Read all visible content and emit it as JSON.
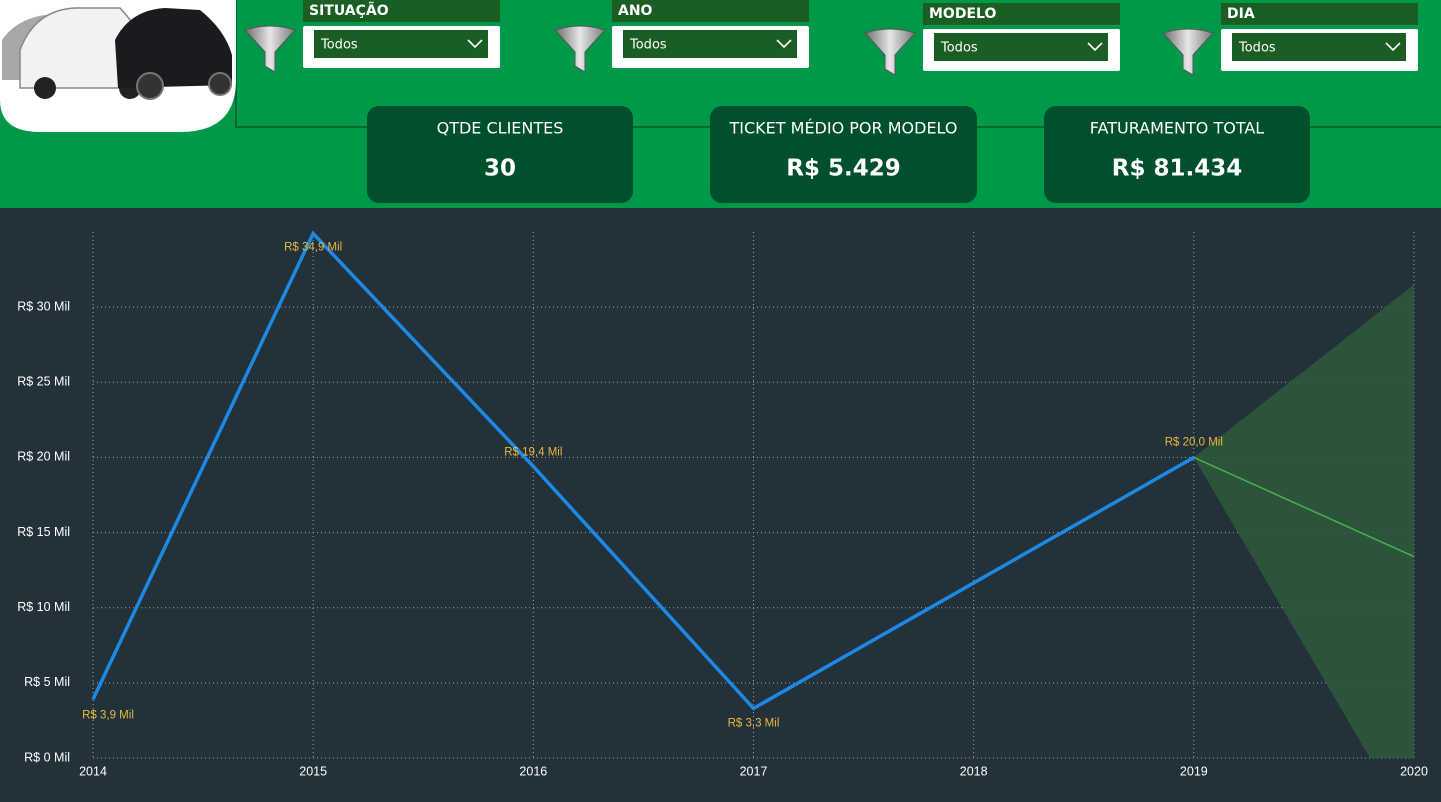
{
  "filters": [
    {
      "label": "SITUAÇÃO",
      "value": "Todos"
    },
    {
      "label": "ANO",
      "value": "Todos"
    },
    {
      "label": "MODELO",
      "value": "Todos"
    },
    {
      "label": "DIA",
      "value": "Todos"
    }
  ],
  "kpis": [
    {
      "title": "QTDE CLIENTES",
      "value": "30"
    },
    {
      "title": "TICKET MÉDIO POR MODELO",
      "value": "R$ 5.429"
    },
    {
      "title": "FATURAMENTO TOTAL",
      "value": "R$ 81.434"
    }
  ],
  "chart_data": {
    "type": "line",
    "x": [
      2014,
      2015,
      2016,
      2017,
      2019
    ],
    "values": [
      3.9,
      34.9,
      19.4,
      3.3,
      20.0
    ],
    "value_labels": [
      "R$ 3,9 Mil",
      "R$ 34,9 Mil",
      "R$ 19,4 Mil",
      "R$ 3,3 Mil",
      "R$ 20,0 Mil"
    ],
    "color": "#1e88e5",
    "forecast": {
      "x": [
        2019,
        2020
      ],
      "values": [
        20.0,
        13.4
      ],
      "upper": [
        20.0,
        31.5
      ],
      "lower": [
        20.0,
        -5
      ],
      "color": "#4caf50",
      "band_color": "#2e5a3c"
    },
    "xlim": [
      2014,
      2020
    ],
    "xticks": [
      2014,
      2015,
      2016,
      2017,
      2018,
      2019,
      2020
    ],
    "ylim": [
      0,
      35
    ],
    "yticks": [
      {
        "value": 0,
        "label": "R$ 0 Mil"
      },
      {
        "value": 5,
        "label": "R$ 5 Mil"
      },
      {
        "value": 10,
        "label": "R$ 10 Mil"
      },
      {
        "value": 15,
        "label": "R$ 15 Mil"
      },
      {
        "value": 20,
        "label": "R$ 20 Mil"
      },
      {
        "value": 25,
        "label": "R$ 25 Mil"
      },
      {
        "value": 30,
        "label": "R$ 30 Mil"
      }
    ],
    "grid": true
  }
}
